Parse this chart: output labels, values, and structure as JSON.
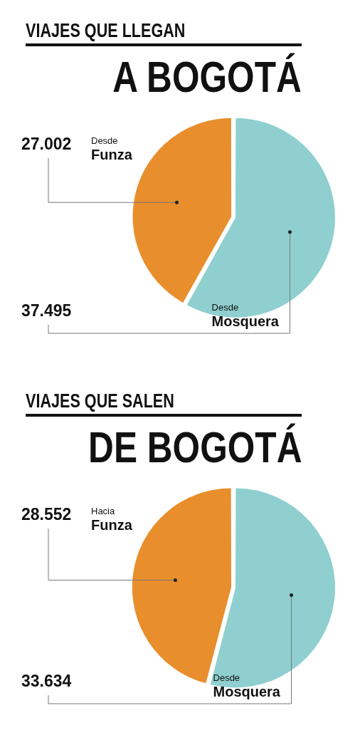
{
  "chart_data": [
    {
      "type": "pie",
      "title": "VIAJES QUE LLEGAN",
      "subtitle": "A BOGOTÁ",
      "categories": [
        "Desde Funza",
        "Desde Mosquera"
      ],
      "values": [
        27002,
        37495
      ],
      "value_labels": [
        "27.002",
        "37.495"
      ],
      "colors": [
        "#e98e2c",
        "#8fcfcf"
      ],
      "legend": false
    },
    {
      "type": "pie",
      "title": "VIAJES QUE SALEN",
      "subtitle": "DE BOGOTÁ",
      "categories": [
        "Hacia Funza",
        "Desde Mosquera"
      ],
      "values": [
        28552,
        33634
      ],
      "value_labels": [
        "28.552",
        "33.634"
      ],
      "colors": [
        "#e98e2c",
        "#8fcfcf"
      ],
      "legend": false
    }
  ]
}
